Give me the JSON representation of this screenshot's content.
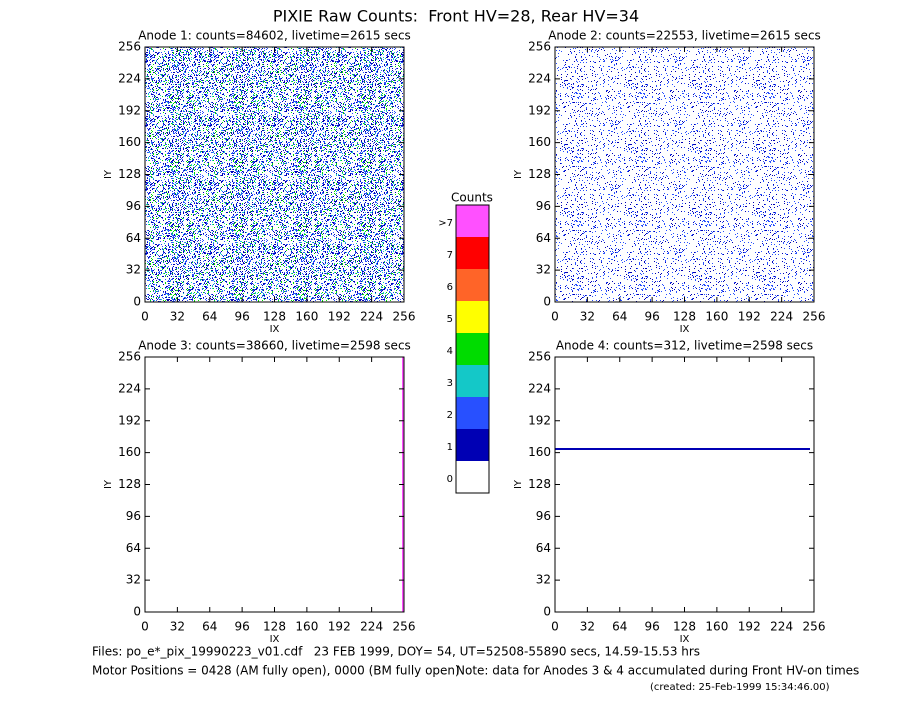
{
  "title": "PIXIE Raw Counts:  Front HV=28, Rear HV=34",
  "chart_data": [
    {
      "type": "heatmap",
      "title": "Anode 1: counts=84602, livetime=2615 secs",
      "xlabel": "IX",
      "ylabel": "IY",
      "xlim": [
        0,
        256
      ],
      "ylim": [
        0,
        256
      ],
      "xticks": [
        0,
        32,
        64,
        96,
        128,
        160,
        192,
        224,
        256
      ],
      "yticks": [
        0,
        32,
        64,
        96,
        128,
        160,
        192,
        224,
        256
      ]
    },
    {
      "type": "heatmap",
      "title": "Anode 2: counts=22553, livetime=2615 secs",
      "xlabel": "IX",
      "ylabel": "IY",
      "xlim": [
        0,
        256
      ],
      "ylim": [
        0,
        256
      ],
      "xticks": [
        0,
        32,
        64,
        96,
        128,
        160,
        192,
        224,
        256
      ],
      "yticks": [
        0,
        32,
        64,
        96,
        128,
        160,
        192,
        224,
        256
      ]
    },
    {
      "type": "heatmap",
      "title": "Anode 3: counts=38660, livetime=2598 secs",
      "xlabel": "IX",
      "ylabel": "IY",
      "xlim": [
        0,
        256
      ],
      "ylim": [
        0,
        256
      ],
      "xticks": [
        0,
        32,
        64,
        96,
        128,
        160,
        192,
        224,
        256
      ],
      "yticks": [
        0,
        32,
        64,
        96,
        128,
        160,
        192,
        224,
        256
      ]
    },
    {
      "type": "heatmap",
      "title": "Anode 4: counts=312, livetime=2598 secs",
      "xlabel": "IX",
      "ylabel": "IY",
      "xlim": [
        0,
        256
      ],
      "ylim": [
        0,
        256
      ],
      "xticks": [
        0,
        32,
        64,
        96,
        128,
        160,
        192,
        224,
        256
      ],
      "yticks": [
        0,
        32,
        64,
        96,
        128,
        160,
        192,
        224,
        256
      ]
    }
  ],
  "colorbar": {
    "title": "Counts",
    "labels": [
      "0",
      "1",
      "2",
      "3",
      "4",
      "5",
      "6",
      "7",
      ">7"
    ],
    "colors": [
      "#ffffff",
      "#0000b4",
      "#2850ff",
      "#14c8c8",
      "#00dc00",
      "#ffff00",
      "#ff6428",
      "#ff0000",
      "#ff50ff"
    ]
  },
  "footer": {
    "files": "Files: po_e*_pix_19990223_v01.cdf   23 FEB 1999, DOY= 54, UT=52508-55890 secs, 14.59-15.53 hrs",
    "motor": "Motor Positions = 0428 (AM fully open), 0000 (BM fully open)",
    "note": "Note: data for Anodes 3 & 4 accumulated during Front HV-on times",
    "created": "(created: 25-Feb-1999 15:34:46.00)"
  }
}
